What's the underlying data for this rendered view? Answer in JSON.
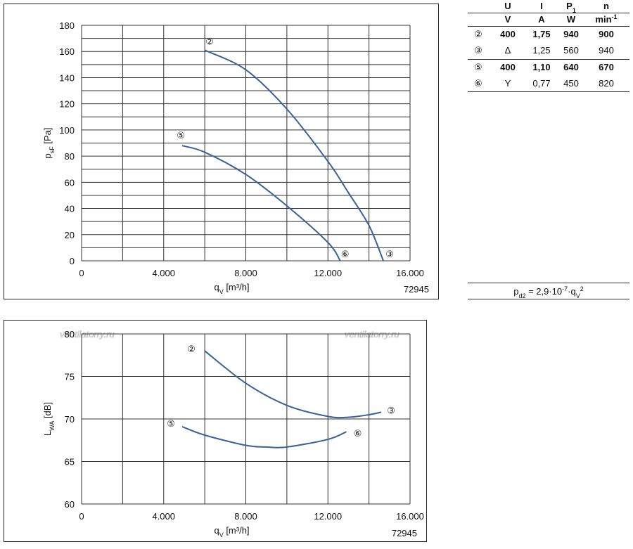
{
  "chart_data": [
    {
      "type": "line",
      "ylabel": [
        {
          "text": "p"
        },
        {
          "text": "sF",
          "pos": "sub"
        },
        {
          "text": " [Pa]"
        }
      ],
      "xlabel": [
        {
          "text": "q"
        },
        {
          "text": "V",
          "pos": "sub"
        },
        {
          "text": " [m³/h]"
        }
      ],
      "code": "72945",
      "xlim": [
        0,
        16000
      ],
      "ylim": [
        0,
        180
      ],
      "xticks": [
        0,
        {
          "value": 4000,
          "label": "4.000"
        },
        {
          "value": 8000,
          "label": "8.000"
        },
        {
          "value": 12000,
          "label": "12.000"
        },
        {
          "value": 16000,
          "label": "16.000"
        }
      ],
      "yticks": [
        0,
        20,
        40,
        60,
        80,
        100,
        120,
        140,
        160,
        180
      ],
      "xminor": [
        2000,
        6000,
        10000,
        14000
      ],
      "yminor": [
        10,
        30,
        50,
        70,
        90,
        110,
        130,
        150,
        170
      ],
      "grid": true,
      "series": [
        {
          "name": "②",
          "end_label": "③",
          "color": "#3a5f9a",
          "x": [
            6000,
            8000,
            10000,
            12000,
            13000,
            14000,
            14700
          ],
          "values": [
            161,
            146,
            116,
            76,
            52,
            27,
            0
          ]
        },
        {
          "name": "⑤",
          "end_label": "⑥",
          "color": "#3a5f9a",
          "x": [
            4900,
            6000,
            8000,
            10000,
            12000,
            12600
          ],
          "values": [
            88,
            83,
            66,
            42,
            14,
            0
          ]
        }
      ]
    },
    {
      "type": "line",
      "ylabel": [
        {
          "text": "L"
        },
        {
          "text": "WA",
          "pos": "sub"
        },
        {
          "text": " [dB]"
        }
      ],
      "xlabel": [
        {
          "text": "q"
        },
        {
          "text": "V",
          "pos": "sub"
        },
        {
          "text": " [m³/h]"
        }
      ],
      "code": "72945",
      "xlim": [
        0,
        16000
      ],
      "ylim": [
        60,
        80
      ],
      "xticks": [
        0,
        {
          "value": 4000,
          "label": "4.000"
        },
        {
          "value": 8000,
          "label": "8.000"
        },
        {
          "value": 12000,
          "label": "12.000"
        },
        {
          "value": 16000,
          "label": "16.000"
        }
      ],
      "yticks": [
        60,
        65,
        70,
        75,
        80
      ],
      "xminor": [
        2000,
        6000,
        10000,
        14000
      ],
      "yminor": [],
      "grid": true,
      "series": [
        {
          "name": "②",
          "end_label": "③",
          "color": "#3a5f9a",
          "x": [
            6000,
            8000,
            10000,
            12000,
            13000,
            14000,
            14600
          ],
          "values": [
            78.0,
            74.2,
            71.6,
            70.3,
            70.2,
            70.5,
            70.8
          ]
        },
        {
          "name": "⑤",
          "end_label": "⑥",
          "color": "#3a5f9a",
          "x": [
            4900,
            6000,
            8000,
            9000,
            10000,
            12000,
            12900
          ],
          "values": [
            69.1,
            68.1,
            66.9,
            66.7,
            66.7,
            67.6,
            68.5
          ]
        }
      ]
    }
  ],
  "watermark": [
    "ventilatorry.ru",
    "ventilatorry.ru"
  ],
  "table": {
    "header": [
      [
        {
          "text": ""
        }
      ],
      [
        {
          "text": "U"
        }
      ],
      [
        {
          "text": "I"
        }
      ],
      [
        {
          "text": "P"
        },
        {
          "text": "1",
          "pos": "sub"
        }
      ],
      [
        {
          "text": "n"
        }
      ]
    ],
    "units": [
      [
        {
          "text": ""
        }
      ],
      [
        {
          "text": "V"
        }
      ],
      [
        {
          "text": "A"
        }
      ],
      [
        {
          "text": "W"
        }
      ],
      [
        {
          "text": "min"
        },
        {
          "text": "-1",
          "pos": "sup"
        }
      ]
    ],
    "rows": [
      {
        "bold": true,
        "cells": [
          "②",
          "400",
          "1,75",
          "940",
          "900"
        ]
      },
      {
        "bold": false,
        "cells": [
          "③",
          "Δ",
          "1,25",
          "560",
          "940"
        ]
      },
      {
        "bold": true,
        "cells": [
          "⑤",
          "400",
          "1,10",
          "640",
          "670"
        ]
      },
      {
        "bold": false,
        "cells": [
          "⑥",
          "Y",
          "0,77",
          "450",
          "820"
        ]
      }
    ]
  },
  "formula": [
    {
      "text": "p"
    },
    {
      "text": "d2",
      "pos": "sub"
    },
    {
      "text": " = 2,9·10"
    },
    {
      "text": "-7",
      "pos": "sup"
    },
    {
      "text": "·q"
    },
    {
      "text": "V",
      "pos": "sub"
    },
    {
      "text": "2",
      "pos": "sup"
    }
  ]
}
